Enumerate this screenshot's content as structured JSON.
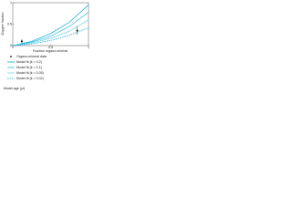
{
  "chart_data": {
    "type": "line",
    "ylabel": "Oxygen fraction",
    "xlabel": "Fraction organo-mineral",
    "xlim": [
      0,
      1
    ],
    "xticks": [
      0,
      0.5,
      1
    ],
    "ylim": [
      0,
      1
    ],
    "yticks": [
      0,
      0.5,
      1
    ],
    "grid": false,
    "x": [
      0,
      0.25,
      0.5,
      0.75,
      1
    ],
    "series": [
      {
        "name": "Model fit (k = 0.2)",
        "color": "#00a8d0",
        "dash": false,
        "values": [
          0,
          0.1,
          0.28,
          0.55,
          0.95
        ]
      },
      {
        "name": "Model fit (k = 0.1)",
        "color": "#30bde0",
        "dash": false,
        "values": [
          0,
          0.08,
          0.22,
          0.45,
          0.78
        ]
      },
      {
        "name": "Model fit (k = 0.05)",
        "color": "#70d2ee",
        "dash": false,
        "values": [
          0,
          0.06,
          0.17,
          0.34,
          0.6
        ]
      },
      {
        "name": "Model fit (k = 0.02)",
        "color": "#00a8d0",
        "dash": true,
        "values": [
          0,
          0.04,
          0.12,
          0.24,
          0.42
        ]
      }
    ],
    "points": {
      "name": "Organo-mineral data",
      "color": "#111111",
      "x": [
        0.12,
        0.85
      ],
      "values": [
        0.1,
        0.35
      ],
      "errors": [
        0.05,
        0.1
      ]
    },
    "note": "Model age (yr)"
  }
}
